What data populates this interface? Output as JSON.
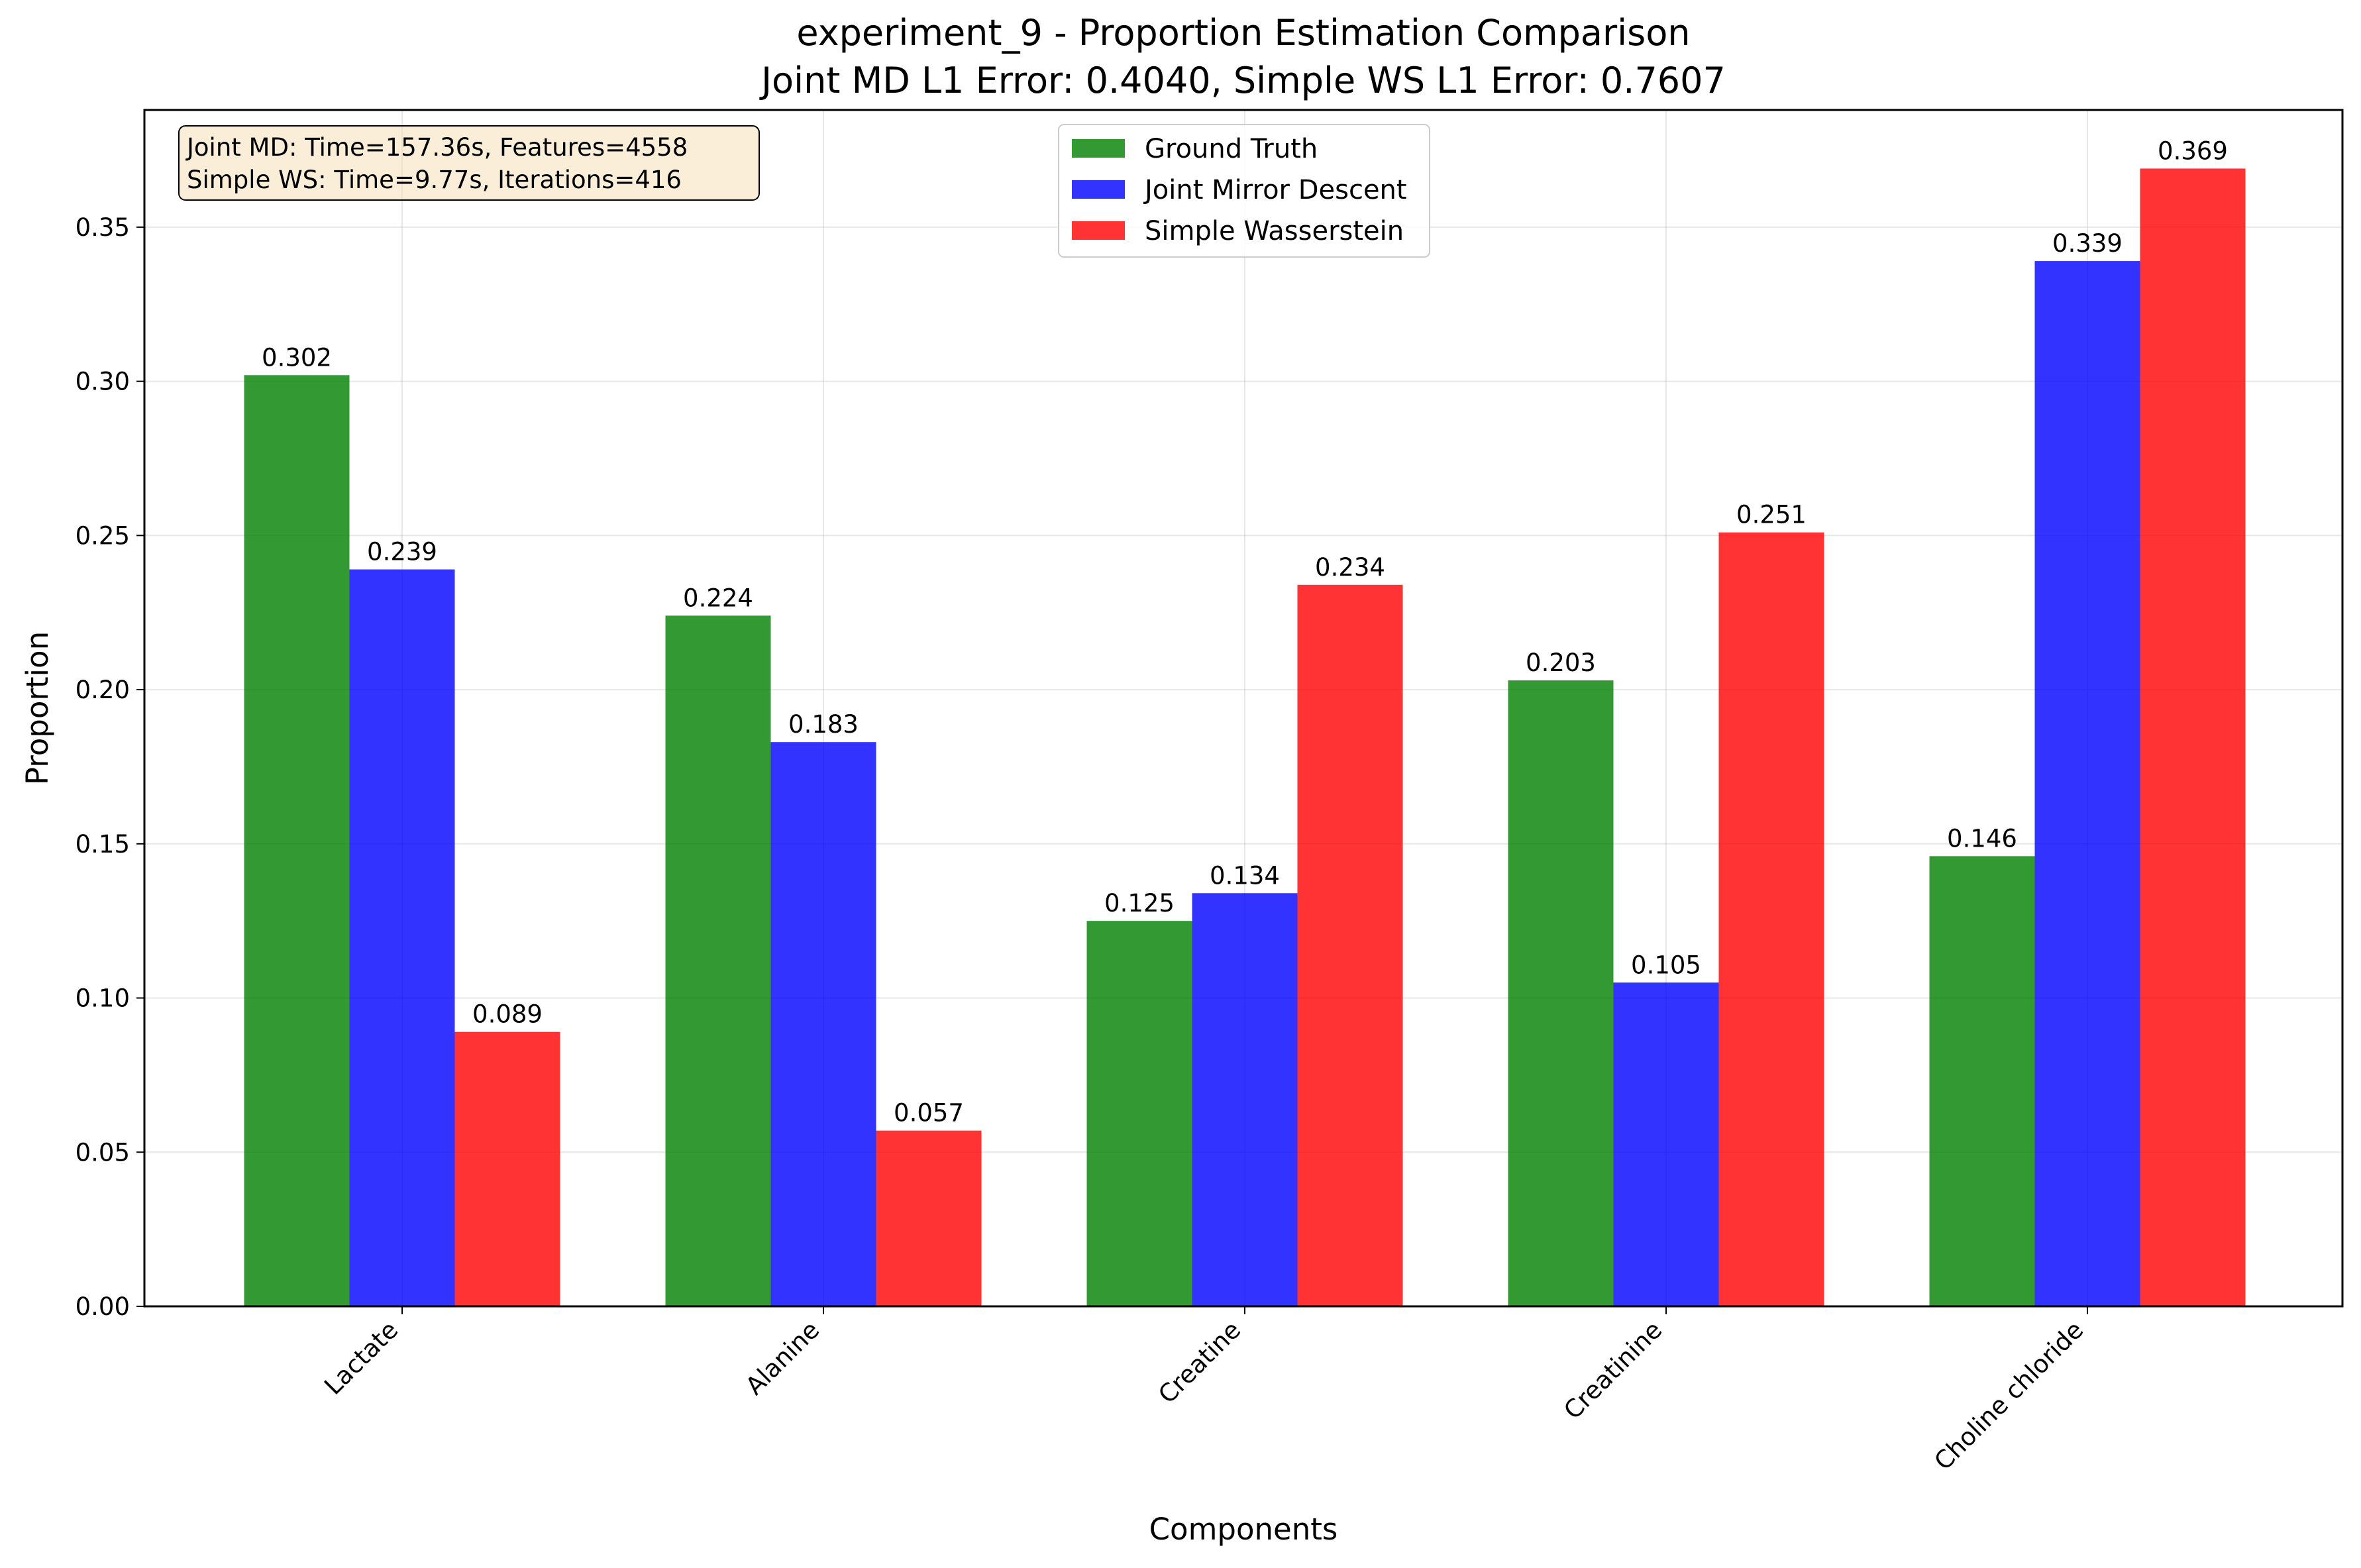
{
  "chart_data": {
    "type": "bar",
    "title": "experiment_9 - Proportion Estimation Comparison",
    "subtitle": "Joint MD L1 Error: 0.4040, Simple WS L1 Error: 0.7607",
    "xlabel": "Components",
    "ylabel": "Proportion",
    "ylim": [
      0,
      0.388
    ],
    "yticks": [
      0.0,
      0.05,
      0.1,
      0.15,
      0.2,
      0.25,
      0.3,
      0.35
    ],
    "ytick_labels": [
      "0.00",
      "0.05",
      "0.10",
      "0.15",
      "0.20",
      "0.25",
      "0.30",
      "0.35"
    ],
    "grid": true,
    "legend_position": "top-center",
    "categories": [
      "Lactate",
      "Alanine",
      "Creatine",
      "Creatinine",
      "Choline chloride"
    ],
    "series": [
      {
        "name": "Ground Truth",
        "color": "#008000",
        "values": [
          0.302,
          0.224,
          0.125,
          0.203,
          0.146
        ],
        "labels": [
          "0.302",
          "0.224",
          "0.125",
          "0.203",
          "0.146"
        ]
      },
      {
        "name": "Joint Mirror Descent",
        "color": "#0000ff",
        "values": [
          0.239,
          0.183,
          0.134,
          0.105,
          0.339
        ],
        "labels": [
          "0.239",
          "0.183",
          "0.134",
          "0.105",
          "0.339"
        ]
      },
      {
        "name": "Simple Wasserstein",
        "color": "#ff0000",
        "values": [
          0.089,
          0.057,
          0.234,
          0.251,
          0.369
        ],
        "labels": [
          "0.089",
          "0.057",
          "0.234",
          "0.251",
          "0.369"
        ]
      }
    ],
    "annotation": {
      "lines": [
        "Joint MD: Time=157.36s, Features=4558",
        "Simple WS: Time=9.77s, Iterations=416"
      ]
    }
  }
}
